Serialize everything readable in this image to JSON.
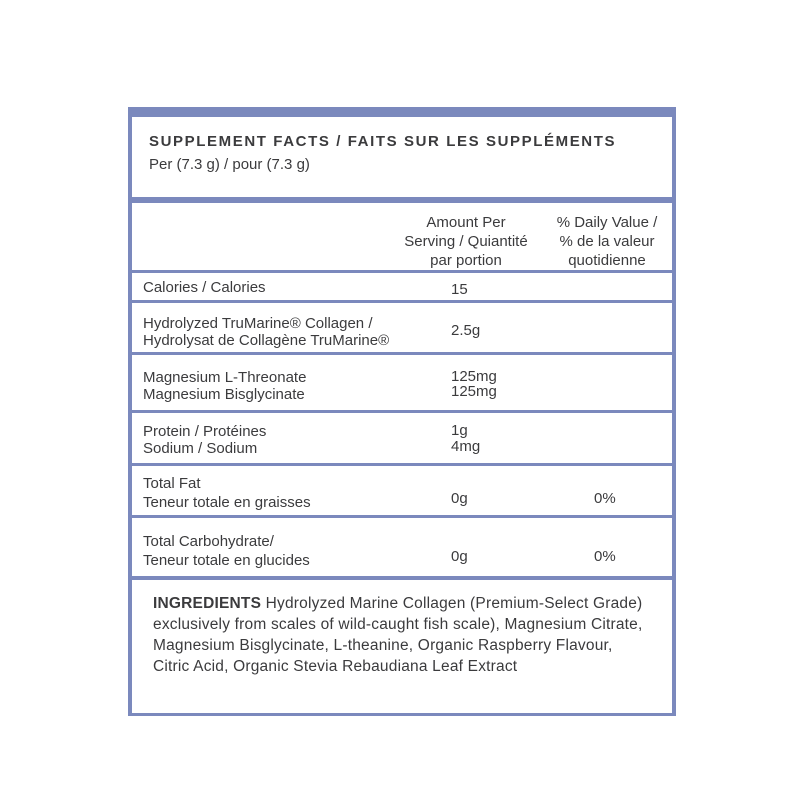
{
  "header": {
    "title": "SUPPLEMENT FACTS / FAITS SUR LES SUPPLÉMENTS",
    "serving": "Per (7.3 g) / pour (7.3 g)"
  },
  "columns": {
    "amount": [
      "Amount Per",
      "Serving / Quiantité",
      "par portion"
    ],
    "daily_value": [
      "% Daily Value /",
      "% de la valeur",
      "quotidienne"
    ]
  },
  "rows": [
    {
      "name": [
        "Calories / Calories"
      ],
      "amount": [
        "15"
      ],
      "dv": ""
    },
    {
      "name": [
        "Hydrolyzed TruMarine® Collagen /",
        "Hydrolysat de Collagène TruMarine®"
      ],
      "amount": [
        "2.5g"
      ],
      "dv": ""
    },
    {
      "name": [
        "Magnesium L-Threonate",
        "Magnesium Bisglycinate"
      ],
      "amount": [
        "125mg",
        "125mg"
      ],
      "dv": ""
    },
    {
      "name": [
        "Protein / Protéines",
        "Sodium / Sodium"
      ],
      "amount": [
        "1g",
        "4mg"
      ],
      "dv": ""
    },
    {
      "name": [
        "Total Fat",
        "Teneur totale en graisses"
      ],
      "amount": [
        "0g"
      ],
      "dv": "0%"
    },
    {
      "name": [
        "Total Carbohydrate/",
        "Teneur totale en glucides"
      ],
      "amount": [
        "0g"
      ],
      "dv": "0%"
    }
  ],
  "ingredients": {
    "label": "INGREDIENTS",
    "text": " Hydrolyzed Marine Collagen (Premium-Select Grade) exclusively from scales of wild-caught fish scale), Magnesium Citrate, Magnesium Bisglycinate, L-theanine, Organic Raspberry Flavour, Citric Acid, Organic Stevia Rebaudiana Leaf Extract"
  },
  "colors": {
    "border": "#7b89bd",
    "text": "#3b3b3d"
  }
}
